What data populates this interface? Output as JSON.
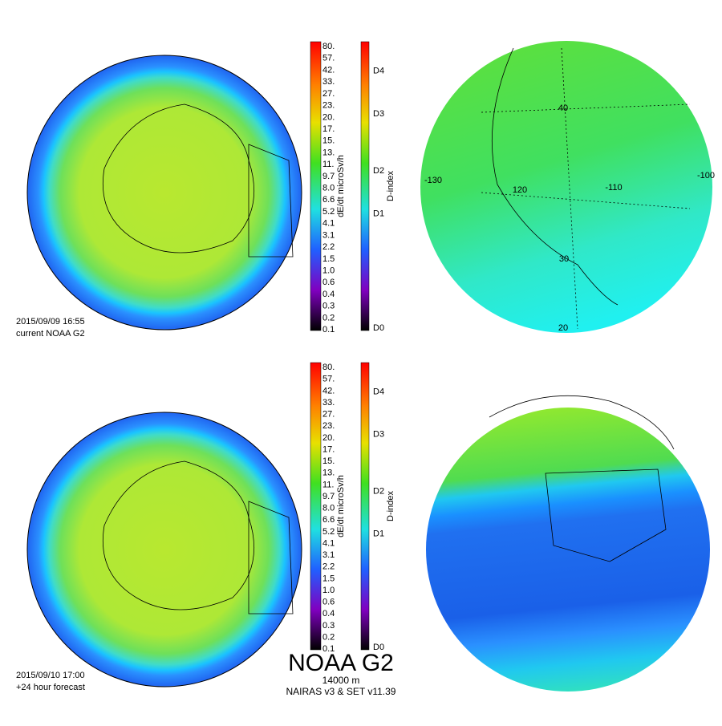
{
  "panels": [
    {
      "timestamp": "2015/09/09 16:55",
      "label": "current NOAA G2"
    },
    {
      "timestamp": "2015/09/10 17:00",
      "label": "+24 hour forecast"
    }
  ],
  "colorbar": {
    "title": "dE/dt microSv/h",
    "labels": [
      "80.",
      "57.",
      "42.",
      "33.",
      "27.",
      "23.",
      "20.",
      "17.",
      "15.",
      "13.",
      "11.",
      "9.7",
      "8.0",
      "6.6",
      "5.2",
      "4.1",
      "3.1",
      "2.2",
      "1.5",
      "1.0",
      "0.6",
      "0.4",
      "0.3",
      "0.2",
      "0.1"
    ]
  },
  "dindex": {
    "title": "D-index",
    "labels": [
      "D4",
      "D3",
      "D2",
      "D1",
      "D0"
    ]
  },
  "map_labels": {
    "longitudes": [
      "-130",
      "120",
      "-110",
      "-100"
    ],
    "latitudes": [
      "40",
      "30",
      "20"
    ]
  },
  "footer": {
    "title": "NOAA G2",
    "altitude": "14000 m",
    "model": "NAIRAS v3 & SET v11.39"
  }
}
